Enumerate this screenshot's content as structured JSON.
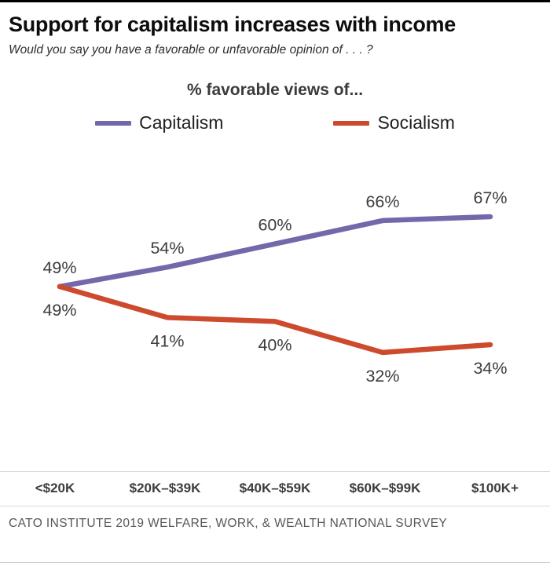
{
  "header": {
    "title": "Support for capitalism increases with income",
    "subtitle": "Would you say you have a favorable or unfavorable opinion of . . . ?"
  },
  "chart_data": {
    "type": "line",
    "title": "% favorable views of...",
    "categories": [
      "<$20K",
      "$20K–$39K",
      "$40K–$59K",
      "$60K–$99K",
      "$100K+"
    ],
    "series": [
      {
        "name": "Capitalism",
        "color": "#7468aa",
        "values": [
          49,
          54,
          60,
          66,
          67
        ],
        "label_position": "above"
      },
      {
        "name": "Socialism",
        "color": "#cd4a2d",
        "values": [
          49,
          41,
          40,
          32,
          34
        ],
        "label_position": "below"
      }
    ],
    "value_suffix": "%",
    "ylim": [
      0,
      100
    ],
    "grid": false,
    "legend_position": "top"
  },
  "footer": {
    "source": "CATO INSTITUTE 2019 WELFARE, WORK, & WEALTH NATIONAL SURVEY"
  },
  "colors": {
    "capitalism": "#7468aa",
    "socialism": "#cd4a2d",
    "label_text": "#3d3d3d",
    "axis_rule": "#dadada"
  }
}
